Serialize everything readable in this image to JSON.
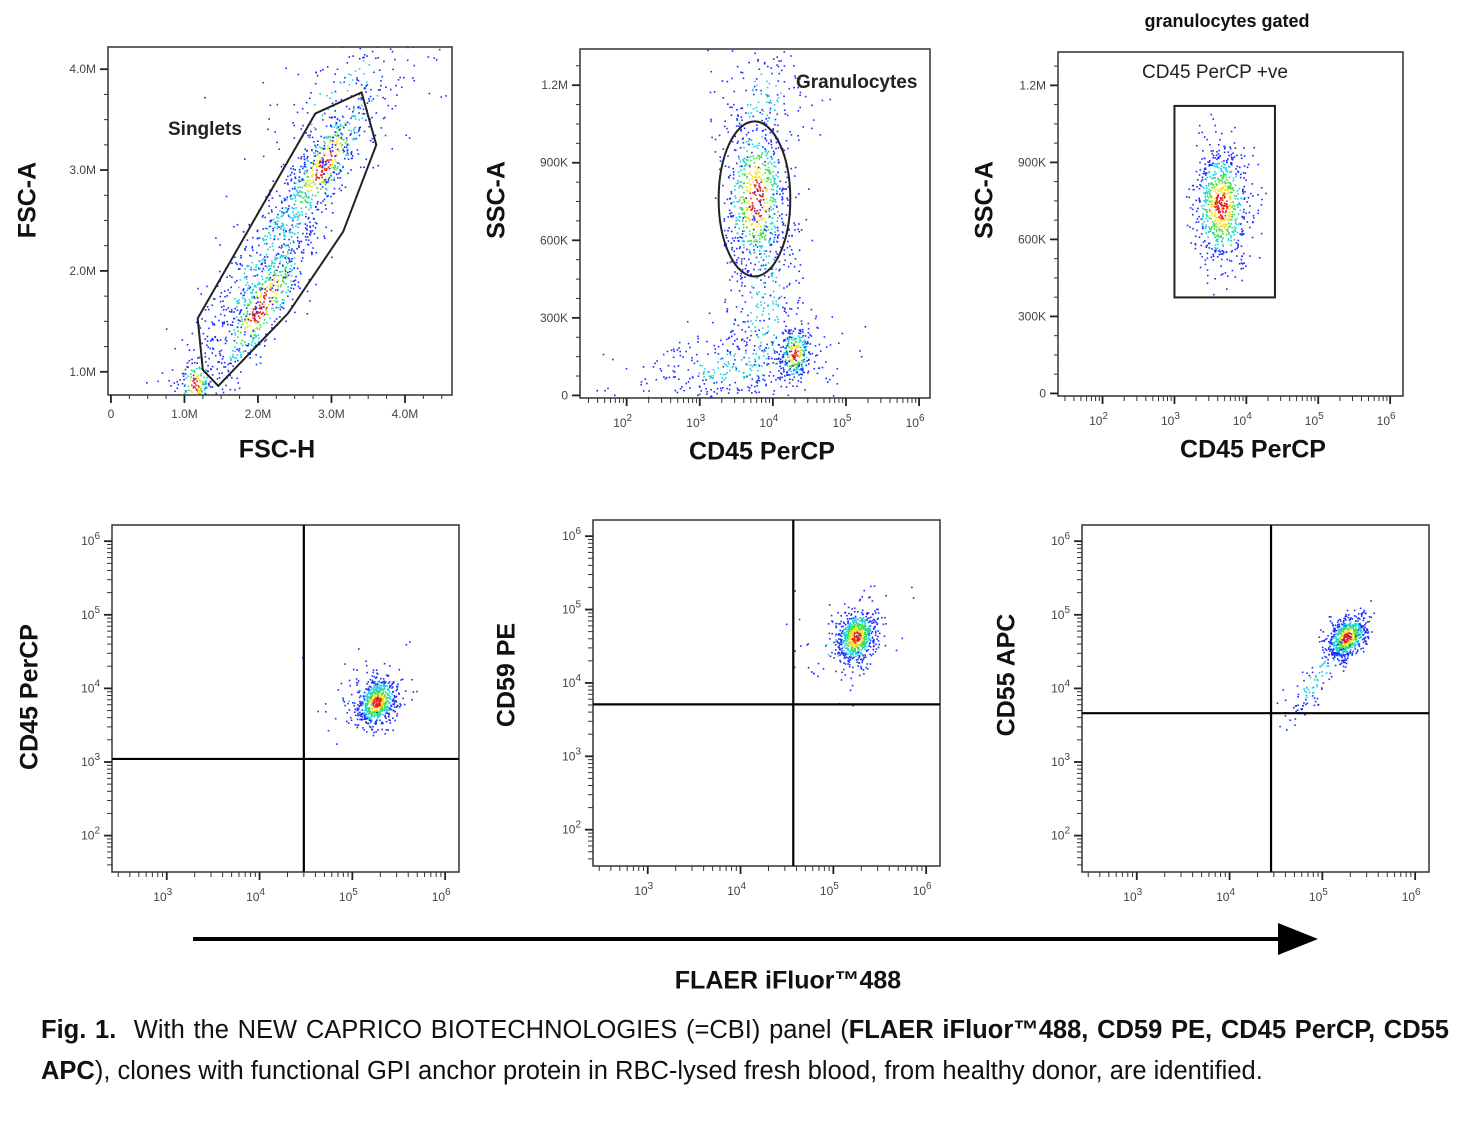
{
  "figure": {
    "panel_title": "granulocytes gated",
    "common_xlabel": "FLAER iFluor™488",
    "caption": [
      {
        "text": "Fig. 1.",
        "bold": true
      },
      {
        "text": "  With the NEW CAPRICO BIOTECHNOLOGIES (=CBI) panel (",
        "bold": false
      },
      {
        "text": "FLAER iFluor™488, CD59 PE, CD45 PerCP, CD55 APC",
        "bold": true
      },
      {
        "text": "), clones with functional GPI anchor protein in RBC-lysed fresh blood, from healthy donor, are identified.",
        "bold": false
      }
    ],
    "colors": {
      "low": "#1a2cff",
      "mid": "#19d0e0",
      "midhigh": "#3ee040",
      "high": "#f5e020",
      "peak": "#e8201a",
      "gate": "#222222"
    }
  },
  "chart_data": [
    {
      "type": "scatter",
      "title": "",
      "xlabel": "FSC-H",
      "ylabel": "FSC-A",
      "xscale": "linear",
      "yscale": "linear",
      "xlim": [
        -40000,
        4640000
      ],
      "ylim": [
        770000,
        4220000
      ],
      "xticks": [
        {
          "value": 0,
          "label": "0"
        },
        {
          "value": 1000000,
          "label": "1.0M"
        },
        {
          "value": 2000000,
          "label": "2.0M"
        },
        {
          "value": 3000000,
          "label": "3.0M"
        },
        {
          "value": 4000000,
          "label": "4.0M"
        }
      ],
      "yticks": [
        {
          "value": 1000000,
          "label": "1.0M"
        },
        {
          "value": 2000000,
          "label": "2.0M"
        },
        {
          "value": 3000000,
          "label": "3.0M"
        },
        {
          "value": 4000000,
          "label": "4.0M"
        }
      ],
      "gate": {
        "type": "polygon",
        "label": "Singlets",
        "points": [
          [
            1180000,
            1530000
          ],
          [
            2780000,
            3560000
          ],
          [
            3410000,
            3770000
          ],
          [
            3610000,
            3250000
          ],
          [
            3160000,
            2390000
          ],
          [
            2410000,
            1580000
          ],
          [
            1460000,
            860000
          ],
          [
            1250000,
            1020000
          ]
        ]
      },
      "populations": [
        {
          "x": 2050000,
          "y": 1650000,
          "sx": 330000,
          "sy": 380000,
          "rho": 0.82,
          "n": 450
        },
        {
          "x": 2900000,
          "y": 3050000,
          "sx": 330000,
          "sy": 380000,
          "rho": 0.82,
          "n": 380
        },
        {
          "x": 2250000,
          "y": 2300000,
          "sx": 750000,
          "sy": 850000,
          "rho": 0.92,
          "n": 700,
          "diffuse": true
        },
        {
          "x": 1150000,
          "y": 870000,
          "sx": 120000,
          "sy": 150000,
          "rho": 0.3,
          "n": 160
        },
        {
          "x": 3200000,
          "y": 3700000,
          "sx": 700000,
          "sy": 500000,
          "rho": 0.5,
          "n": 150,
          "diffuse": true
        }
      ]
    },
    {
      "type": "scatter",
      "title": "",
      "xlabel": "CD45 PerCP",
      "ylabel": "SSC-A",
      "xscale": "log",
      "yscale": "linear",
      "xlim": [
        23,
        1410000
      ],
      "ylim": [
        -10000,
        1340000
      ],
      "xticks": [
        {
          "value": 100,
          "label": "10",
          "sup": "2"
        },
        {
          "value": 1000,
          "label": "10",
          "sup": "3"
        },
        {
          "value": 10000,
          "label": "10",
          "sup": "4"
        },
        {
          "value": 100000,
          "label": "10",
          "sup": "5"
        },
        {
          "value": 1000000,
          "label": "10",
          "sup": "6"
        }
      ],
      "yticks": [
        {
          "value": 0,
          "label": "0"
        },
        {
          "value": 300000,
          "label": "300K"
        },
        {
          "value": 600000,
          "label": "600K"
        },
        {
          "value": 900000,
          "label": "900K"
        },
        {
          "value": 1200000,
          "label": "1.2M"
        }
      ],
      "gate": {
        "type": "ellipse",
        "label": "Granulocytes",
        "center": [
          5600,
          760000
        ],
        "rx_decades": 0.49,
        "ry": 300000
      },
      "populations": [
        {
          "x": 6000,
          "y": 760000,
          "sx": 0.22,
          "sy": 170000,
          "rho": 0.0,
          "n": 650
        },
        {
          "x": 20000,
          "y": 160000,
          "sx": 0.12,
          "sy": 55000,
          "rho": 0.1,
          "n": 260
        },
        {
          "x": 8000,
          "y": 350000,
          "sx": 0.3,
          "sy": 250000,
          "rho": 0.0,
          "n": 350,
          "diffuse": true
        },
        {
          "x": 3000,
          "y": 110000,
          "sx": 0.7,
          "sy": 70000,
          "rho": 0.2,
          "n": 300,
          "diffuse": true
        },
        {
          "x": 7000,
          "y": 1150000,
          "sx": 0.35,
          "sy": 120000,
          "rho": 0.0,
          "n": 150,
          "diffuse": true
        }
      ]
    },
    {
      "type": "scatter",
      "title": "granulocytes gated",
      "xlabel": "CD45 PerCP",
      "ylabel": "SSC-A",
      "xscale": "log",
      "yscale": "linear",
      "xlim": [
        24,
        1510000
      ],
      "ylim": [
        -10000,
        1330000
      ],
      "xticks": [
        {
          "value": 100,
          "label": "10",
          "sup": "2"
        },
        {
          "value": 1000,
          "label": "10",
          "sup": "3"
        },
        {
          "value": 10000,
          "label": "10",
          "sup": "4"
        },
        {
          "value": 100000,
          "label": "10",
          "sup": "5"
        },
        {
          "value": 1000000,
          "label": "10",
          "sup": "6"
        }
      ],
      "yticks": [
        {
          "value": 0,
          "label": "0"
        },
        {
          "value": 300000,
          "label": "300K"
        },
        {
          "value": 600000,
          "label": "600K"
        },
        {
          "value": 900000,
          "label": "900K"
        },
        {
          "value": 1200000,
          "label": "1.2M"
        }
      ],
      "gate": {
        "type": "rect",
        "label": "CD45 PerCP +ve",
        "x": [
          1000,
          25000
        ],
        "y": [
          374000,
          1120000
        ]
      },
      "populations": [
        {
          "x": 4500,
          "y": 730000,
          "sx": 0.2,
          "sy": 120000,
          "rho": 0.0,
          "n": 750
        }
      ]
    },
    {
      "type": "scatter",
      "title": "",
      "xlabel": "",
      "ylabel": "CD45 PerCP",
      "xscale": "log",
      "yscale": "log",
      "xlim": [
        257,
        1410000
      ],
      "ylim": [
        32,
        1660000
      ],
      "xticks": [
        {
          "value": 1000,
          "label": "10",
          "sup": "3"
        },
        {
          "value": 10000,
          "label": "10",
          "sup": "4"
        },
        {
          "value": 100000,
          "label": "10",
          "sup": "5"
        },
        {
          "value": 1000000,
          "label": "10",
          "sup": "6"
        }
      ],
      "yticks": [
        {
          "value": 100,
          "label": "10",
          "sup": "2"
        },
        {
          "value": 1000,
          "label": "10",
          "sup": "3"
        },
        {
          "value": 10000,
          "label": "10",
          "sup": "4"
        },
        {
          "value": 100000,
          "label": "10",
          "sup": "5"
        },
        {
          "value": 1000000,
          "label": "10",
          "sup": "6"
        }
      ],
      "gate": {
        "type": "quadrant",
        "x": 30000,
        "y": 1100
      },
      "populations": [
        {
          "x": 186000,
          "y": 6500,
          "sx": 0.11,
          "sy": 0.17,
          "rho": 0.3,
          "n": 600
        },
        {
          "x": 150000,
          "y": 8000,
          "sx": 0.3,
          "sy": 0.3,
          "rho": 0.2,
          "n": 60,
          "diffuse": true
        }
      ]
    },
    {
      "type": "scatter",
      "title": "",
      "xlabel": "",
      "ylabel": "CD59 PE",
      "xscale": "log",
      "yscale": "log",
      "xlim": [
        257,
        1410000
      ],
      "ylim": [
        32,
        1660000
      ],
      "xticks": [
        {
          "value": 1000,
          "label": "10",
          "sup": "3"
        },
        {
          "value": 10000,
          "label": "10",
          "sup": "4"
        },
        {
          "value": 100000,
          "label": "10",
          "sup": "5"
        },
        {
          "value": 1000000,
          "label": "10",
          "sup": "6"
        }
      ],
      "yticks": [
        {
          "value": 100,
          "label": "10",
          "sup": "2"
        },
        {
          "value": 1000,
          "label": "10",
          "sup": "3"
        },
        {
          "value": 10000,
          "label": "10",
          "sup": "4"
        },
        {
          "value": 100000,
          "label": "10",
          "sup": "5"
        },
        {
          "value": 1000000,
          "label": "10",
          "sup": "6"
        }
      ],
      "gate": {
        "type": "quadrant",
        "x": 37000,
        "y": 5100
      },
      "populations": [
        {
          "x": 178000,
          "y": 42000,
          "sx": 0.11,
          "sy": 0.19,
          "rho": 0.2,
          "n": 650
        },
        {
          "x": 120000,
          "y": 40000,
          "sx": 0.3,
          "sy": 0.3,
          "rho": 0.2,
          "n": 60,
          "diffuse": true
        }
      ]
    },
    {
      "type": "scatter",
      "title": "",
      "xlabel": "",
      "ylabel": "CD55 APC",
      "xscale": "log",
      "yscale": "log",
      "xlim": [
        257,
        1410000
      ],
      "ylim": [
        32,
        1660000
      ],
      "xticks": [
        {
          "value": 1000,
          "label": "10",
          "sup": "3"
        },
        {
          "value": 10000,
          "label": "10",
          "sup": "4"
        },
        {
          "value": 100000,
          "label": "10",
          "sup": "5"
        },
        {
          "value": 1000000,
          "label": "10",
          "sup": "6"
        }
      ],
      "yticks": [
        {
          "value": 100,
          "label": "10",
          "sup": "2"
        },
        {
          "value": 1000,
          "label": "10",
          "sup": "3"
        },
        {
          "value": 10000,
          "label": "10",
          "sup": "4"
        },
        {
          "value": 100000,
          "label": "10",
          "sup": "5"
        },
        {
          "value": 1000000,
          "label": "10",
          "sup": "6"
        }
      ],
      "gate": {
        "type": "quadrant",
        "x": 28000,
        "y": 4600
      },
      "populations": [
        {
          "x": 186000,
          "y": 49000,
          "sx": 0.11,
          "sy": 0.15,
          "rho": 0.35,
          "n": 620
        },
        {
          "x": 90000,
          "y": 14000,
          "sx": 0.22,
          "sy": 0.35,
          "rho": 0.85,
          "n": 110,
          "diffuse": true
        }
      ]
    }
  ]
}
